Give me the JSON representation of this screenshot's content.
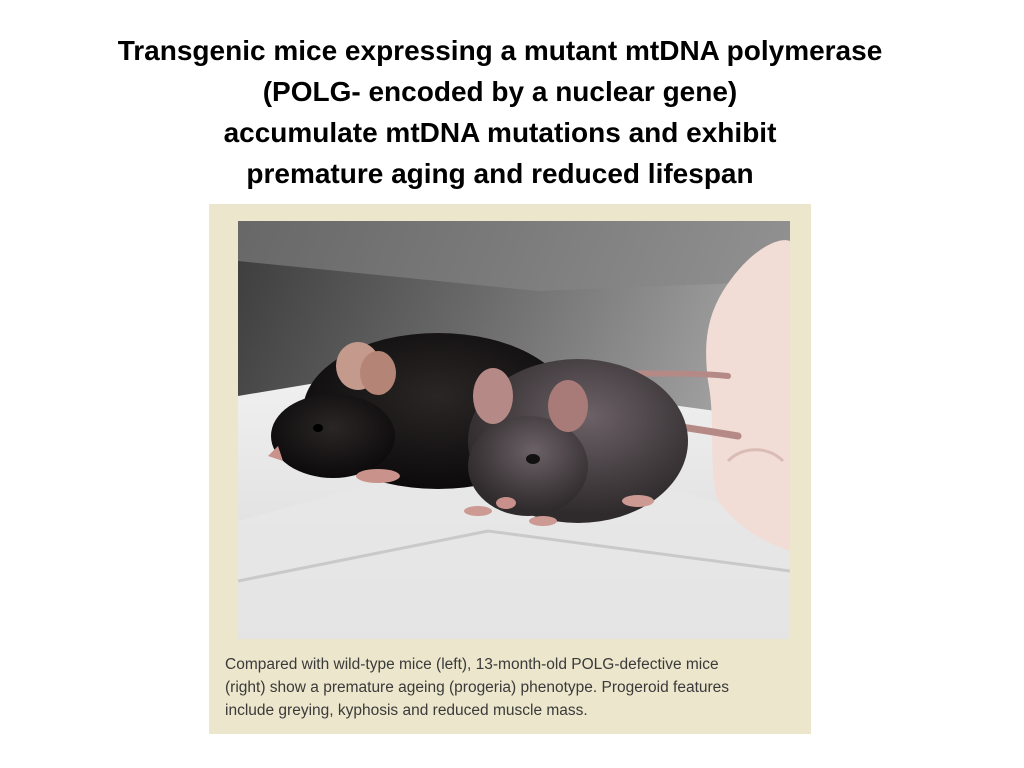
{
  "slide": {
    "title_lines": [
      "Transgenic mice expressing a mutant mtDNA polymerase",
      "(POLG- encoded by a nuclear gene)",
      "accumulate mtDNA mutations and exhibit",
      "premature aging and reduced lifespan"
    ]
  },
  "figure": {
    "caption_lines": [
      "Compared with wild-type mice (left), 13-month-old POLG-defective mice",
      "(right) show a premature ageing (progeria) phenotype. Progeroid features",
      "include greying, kyphosis and reduced muscle mass."
    ]
  }
}
